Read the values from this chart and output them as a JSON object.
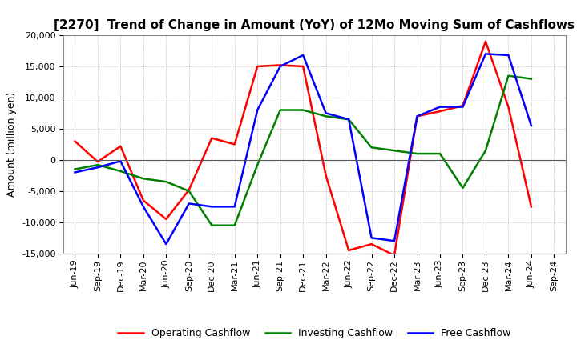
{
  "title": "[2270]  Trend of Change in Amount (YoY) of 12Mo Moving Sum of Cashflows",
  "ylabel": "Amount (million yen)",
  "ylim": [
    -15000,
    20000
  ],
  "yticks": [
    -15000,
    -10000,
    -5000,
    0,
    5000,
    10000,
    15000,
    20000
  ],
  "background_color": "#ffffff",
  "plot_bg_color": "#ffffff",
  "grid_color": "#aaaaaa",
  "labels": [
    "Jun-19",
    "Sep-19",
    "Dec-19",
    "Mar-20",
    "Jun-20",
    "Sep-20",
    "Dec-20",
    "Mar-21",
    "Jun-21",
    "Sep-21",
    "Dec-21",
    "Mar-22",
    "Jun-22",
    "Sep-22",
    "Dec-22",
    "Mar-23",
    "Jun-23",
    "Sep-23",
    "Dec-23",
    "Mar-24",
    "Jun-24",
    "Sep-24"
  ],
  "operating": [
    3000,
    -300,
    2200,
    -6500,
    -9500,
    -4800,
    3500,
    2500,
    15000,
    15200,
    15000,
    -2500,
    -14500,
    -13500,
    -15300,
    7000,
    7800,
    8700,
    19000,
    8500,
    -7500,
    null
  ],
  "investing": [
    -1500,
    -800,
    -1800,
    -3000,
    -3500,
    -5000,
    -10500,
    -10500,
    -800,
    8000,
    8000,
    7000,
    6500,
    2000,
    1500,
    1000,
    1000,
    -4500,
    1500,
    13500,
    13000,
    null
  ],
  "free": [
    -2000,
    -1200,
    -200,
    -7500,
    -13500,
    -7000,
    -7500,
    -7500,
    8000,
    15000,
    16800,
    7500,
    6500,
    -12500,
    -13000,
    7000,
    8500,
    8500,
    17000,
    16800,
    5500,
    null
  ],
  "op_color": "#ff0000",
  "inv_color": "#008000",
  "free_color": "#0000ff",
  "line_width": 1.8,
  "title_fontsize": 11,
  "label_fontsize": 8,
  "legend_fontsize": 9
}
